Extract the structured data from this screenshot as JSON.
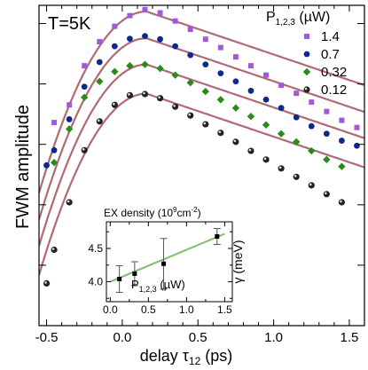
{
  "chart_data": [
    {
      "type": "scatter",
      "annotation": "T=5K",
      "xlabel": "delay",
      "xlabel_symbol": "τ",
      "xlabel_sub": "12",
      "xlabel_unit": "(ps)",
      "ylabel": "FWM amplitude",
      "y_scale": "log",
      "xlim": [
        -0.55,
        1.6
      ],
      "ylim": [
        1,
        200000
      ],
      "xticks": [
        -0.5,
        0.0,
        0.5,
        1.0,
        1.5
      ],
      "xticklabels": [
        "-0.5",
        "0.0",
        "0.5",
        "1.0",
        "1.5"
      ],
      "legend_title": "P",
      "legend_title_sub": "1,2,3",
      "legend_title_unit": "(µW)",
      "legend_position": "top-right",
      "fit_color": "#b06a72",
      "series": [
        {
          "name": "1.4",
          "marker": "square",
          "color": "#a259d9",
          "x": [
            -0.45,
            -0.35,
            -0.25,
            -0.15,
            -0.05,
            0.05,
            0.15,
            0.25,
            0.35,
            0.45,
            0.55,
            0.65,
            0.75,
            0.85,
            0.95,
            1.05,
            1.15,
            1.25,
            1.35,
            1.45,
            1.55
          ],
          "y": [
            2300,
            4500,
            20000,
            50000,
            90000,
            135000,
            170000,
            150000,
            110000,
            80000,
            55000,
            40000,
            28000,
            20000,
            14000,
            9500,
            7000,
            5000,
            3500,
            2500,
            1900
          ],
          "fit_peak": 158000,
          "fit_x0": 0.16
        },
        {
          "name": "0.7",
          "marker": "circle",
          "color": "#0d2a8a",
          "x": [
            -0.5,
            -0.45,
            -0.35,
            -0.25,
            -0.15,
            -0.05,
            0.05,
            0.15,
            0.25,
            0.35,
            0.45,
            0.55,
            0.65,
            0.75,
            0.85,
            0.95,
            1.05,
            1.15,
            1.25,
            1.35,
            1.45,
            1.55
          ],
          "y": [
            450,
            800,
            2600,
            9000,
            23000,
            42000,
            56000,
            62000,
            55000,
            42000,
            30000,
            21000,
            15000,
            11000,
            7700,
            5500,
            4000,
            2800,
            2000,
            1500,
            1150,
            950
          ],
          "fit_peak": 57000,
          "fit_x0": 0.16
        },
        {
          "name": "0.32",
          "marker": "diamond",
          "color": "#2a8a1a",
          "x": [
            -0.45,
            -0.35,
            -0.25,
            -0.15,
            -0.05,
            0.05,
            0.15,
            0.25,
            0.35,
            0.45,
            0.55,
            0.65,
            0.75,
            0.85,
            0.95,
            1.05,
            1.15,
            1.25,
            1.35,
            1.45
          ],
          "y": [
            500,
            1800,
            6000,
            11000,
            16000,
            20000,
            21000,
            18000,
            14000,
            10500,
            7500,
            5500,
            4000,
            2900,
            2100,
            1500,
            1100,
            780,
            560,
            430
          ],
          "fit_peak": 21000,
          "fit_x0": 0.16
        },
        {
          "name": "0.12",
          "marker": "sphere",
          "color": "#222222",
          "x": [
            -0.5,
            -0.45,
            -0.35,
            -0.25,
            -0.15,
            -0.05,
            0.05,
            0.15,
            0.25,
            0.35,
            0.45,
            0.55,
            0.65,
            0.75,
            0.85,
            0.95,
            1.05,
            1.15,
            1.25,
            1.35,
            1.45
          ],
          "y": [
            5,
            18,
            110,
            800,
            2400,
            4500,
            6500,
            6800,
            5800,
            4200,
            3000,
            2150,
            1550,
            1100,
            780,
            560,
            400,
            290,
            210,
            150,
            110
          ],
          "fit_peak": 6900,
          "fit_x0": 0.16
        }
      ]
    },
    {
      "type": "line",
      "inset": true,
      "xlabel": "P",
      "xlabel_sub": "1,2,3",
      "xlabel_unit": "(µW)",
      "ylabel": "γ (meV)",
      "top_label": "EX density (10",
      "top_label_sup": "9",
      "top_label_unit": "cm",
      "top_label_sup2": "-2",
      "top_label_end": ")",
      "xlim": [
        -0.05,
        1.6
      ],
      "ylim": [
        3.7,
        4.9
      ],
      "xticks": [
        0.0,
        0.5,
        1.0,
        1.5
      ],
      "xticklabels": [
        "0.0",
        "0.5",
        "1.0",
        "1.5"
      ],
      "yticks": [
        4.0,
        4.5
      ],
      "yticklabels": [
        "4.0",
        "4.5"
      ],
      "fit_color": "#7cbf6a",
      "series": [
        {
          "x": [
            0.12,
            0.32,
            0.7,
            1.4
          ],
          "y": [
            4.04,
            4.12,
            4.27,
            4.68
          ],
          "err": [
            0.2,
            0.18,
            0.38,
            0.12
          ]
        }
      ],
      "fit_line": {
        "x": [
          0.0,
          1.5
        ],
        "y": [
          4.0,
          4.72
        ]
      }
    }
  ]
}
